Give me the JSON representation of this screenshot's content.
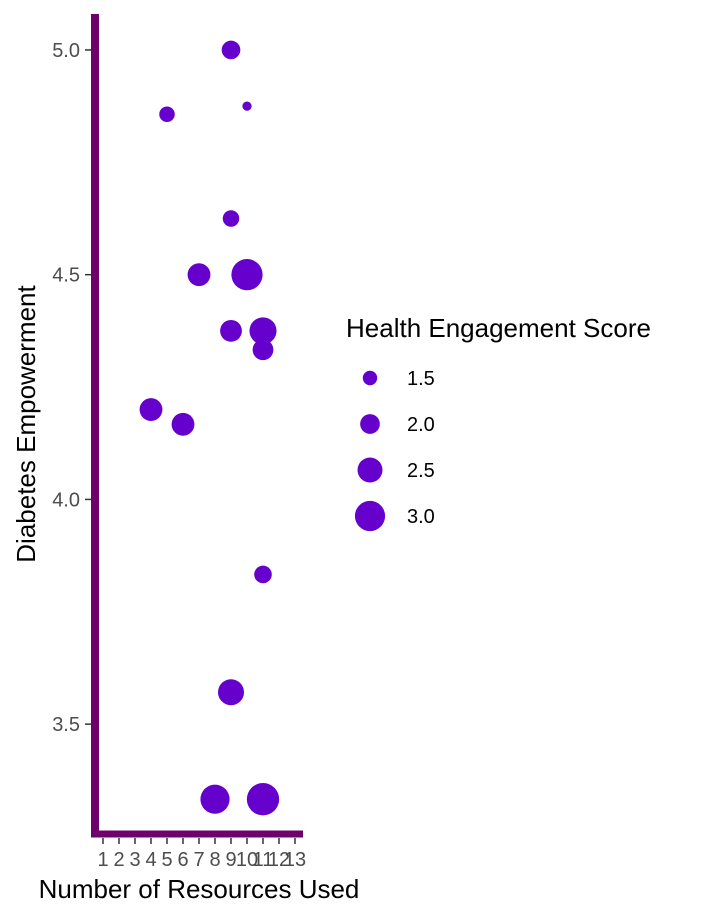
{
  "chart_data": {
    "type": "scatter",
    "title": "",
    "xlabel": "Number of Resources Used",
    "ylabel": "Diabetes Empowerment",
    "xlim": [
      0.5,
      13.5
    ],
    "ylim": [
      3.26,
      5.08
    ],
    "x_ticks": [
      1,
      2,
      3,
      4,
      5,
      6,
      7,
      8,
      9,
      10,
      11,
      12,
      13
    ],
    "x_tick_labels": [
      "1",
      "2",
      "3",
      "4",
      "5",
      "6",
      "7",
      "8",
      "9",
      "10",
      "11",
      "12",
      "13"
    ],
    "y_ticks": [
      3.5,
      4.0,
      4.5,
      5.0
    ],
    "y_tick_labels": [
      "3.5",
      "4.0",
      "4.5",
      "5.0"
    ],
    "grid": false,
    "point_color": "#6600CC",
    "axis_color": "#6E006E",
    "size_legend": {
      "title": "Health Engagement Score",
      "entries": [
        {
          "label": "1.5",
          "value": 1.5
        },
        {
          "label": "2.0",
          "value": 2.0
        },
        {
          "label": "2.5",
          "value": 2.5
        },
        {
          "label": "3.0",
          "value": 3.0
        }
      ],
      "placement": "right"
    },
    "points": [
      {
        "x": 9,
        "y": 5.0,
        "size": 1.9
      },
      {
        "x": 5,
        "y": 4.857,
        "size": 1.6
      },
      {
        "x": 10,
        "y": 4.875,
        "size": 1.0
      },
      {
        "x": 9,
        "y": 4.625,
        "size": 1.7
      },
      {
        "x": 7,
        "y": 4.5,
        "size": 2.3
      },
      {
        "x": 10,
        "y": 4.5,
        "size": 3.1
      },
      {
        "x": 9,
        "y": 4.375,
        "size": 2.2
      },
      {
        "x": 11,
        "y": 4.375,
        "size": 2.7
      },
      {
        "x": 11,
        "y": 4.333,
        "size": 2.1
      },
      {
        "x": 4,
        "y": 4.2,
        "size": 2.3
      },
      {
        "x": 6,
        "y": 4.167,
        "size": 2.3
      },
      {
        "x": 11,
        "y": 3.833,
        "size": 1.8
      },
      {
        "x": 9,
        "y": 3.571,
        "size": 2.6
      },
      {
        "x": 8,
        "y": 3.333,
        "size": 2.9
      },
      {
        "x": 11,
        "y": 3.333,
        "size": 3.2
      }
    ]
  }
}
